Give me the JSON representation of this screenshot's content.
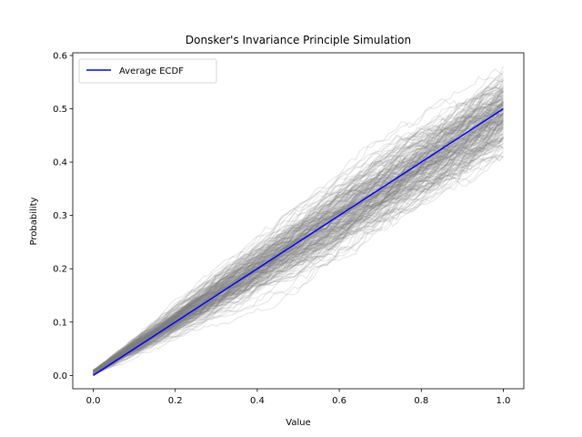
{
  "chart_data": {
    "type": "line",
    "title": "Donsker's Invariance Principle Simulation",
    "xlabel": "Value",
    "ylabel": "Probability",
    "xlim": [
      -0.05,
      1.05
    ],
    "ylim": [
      -0.025,
      0.605
    ],
    "xticks": [
      0.0,
      0.2,
      0.4,
      0.6,
      0.8,
      1.0
    ],
    "yticks": [
      0.0,
      0.1,
      0.2,
      0.3,
      0.4,
      0.5,
      0.6
    ],
    "grid": false,
    "legend_position": "top-left",
    "series": [
      {
        "name": "Average ECDF",
        "color": "#0000ff",
        "x": [
          0.0,
          1.0
        ],
        "y": [
          0.0,
          0.5
        ]
      }
    ],
    "background_series": {
      "description_color": "#808080",
      "count": 200,
      "mean_slope": 0.5,
      "start_y_range": [
        0.0,
        0.01
      ],
      "end_y_range": [
        0.41,
        0.58
      ]
    }
  }
}
